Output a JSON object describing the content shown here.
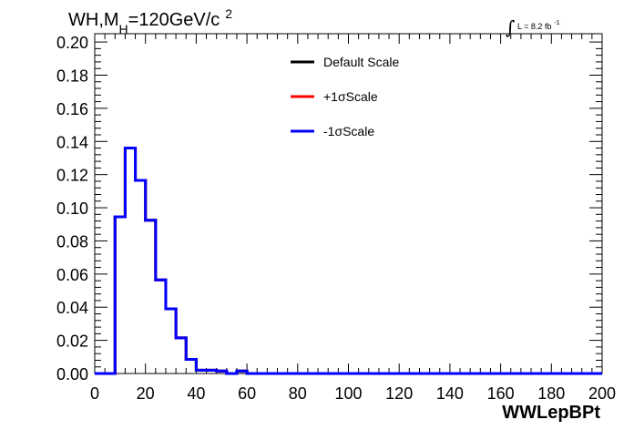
{
  "chart_data": {
    "type": "line",
    "title_main": "WH,M",
    "title_sub": "H",
    "title_rest": "=120GeV/c",
    "title_sup": "2",
    "lumi_label": "L = 8.2 fb",
    "lumi_sup": "-1",
    "xlabel": "WWLepBPt",
    "xlim": [
      0,
      200
    ],
    "ylim": [
      0,
      0.205
    ],
    "x_ticks": [
      "0",
      "20",
      "40",
      "60",
      "80",
      "100",
      "120",
      "140",
      "160",
      "180",
      "200"
    ],
    "y_ticks": [
      "0.00",
      "0.02",
      "0.04",
      "0.06",
      "0.08",
      "0.10",
      "0.12",
      "0.14",
      "0.16",
      "0.18",
      "0.20"
    ],
    "bin_width": 4,
    "bin_edges_start": 0,
    "legend_position": "top-center",
    "series": [
      {
        "name": "Default Scale",
        "color": "#000000",
        "values": [
          0,
          0,
          0.0945,
          0.136,
          0.1165,
          0.0925,
          0.0565,
          0.039,
          0.0215,
          0.0085,
          0.002,
          0.002,
          0.0015,
          0,
          0.0015,
          0,
          0,
          0,
          0,
          0,
          0,
          0,
          0,
          0,
          0,
          0,
          0,
          0,
          0,
          0,
          0,
          0,
          0,
          0,
          0,
          0,
          0,
          0,
          0,
          0,
          0,
          0,
          0,
          0,
          0,
          0,
          0,
          0,
          0,
          0
        ]
      },
      {
        "name": "+1σScale",
        "color": "#ff0000",
        "values": [
          0,
          0,
          0.0945,
          0.136,
          0.1165,
          0.0925,
          0.0565,
          0.039,
          0.0215,
          0.0085,
          0.002,
          0.002,
          0.0015,
          0,
          0.0015,
          0,
          0,
          0,
          0,
          0,
          0,
          0,
          0,
          0,
          0,
          0,
          0,
          0,
          0,
          0,
          0,
          0,
          0,
          0,
          0,
          0,
          0,
          0,
          0,
          0,
          0,
          0,
          0,
          0,
          0,
          0,
          0,
          0,
          0,
          0
        ]
      },
      {
        "name": "-1σScale",
        "color": "#0000ff",
        "values": [
          0,
          0,
          0.0945,
          0.136,
          0.1165,
          0.0925,
          0.0565,
          0.039,
          0.0215,
          0.0085,
          0.002,
          0.002,
          0.0015,
          0,
          0.0015,
          0,
          0,
          0,
          0,
          0,
          0,
          0,
          0,
          0,
          0,
          0,
          0,
          0,
          0,
          0,
          0,
          0,
          0,
          0,
          0,
          0,
          0,
          0,
          0,
          0,
          0,
          0,
          0,
          0,
          0,
          0,
          0,
          0,
          0,
          0
        ]
      }
    ]
  }
}
